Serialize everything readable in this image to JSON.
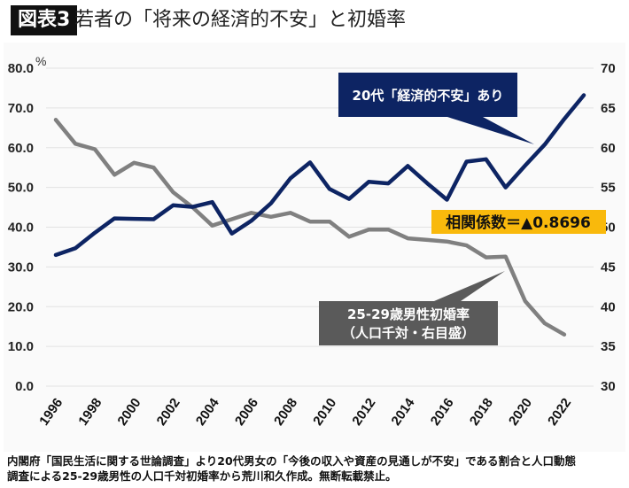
{
  "header": {
    "badge": "図表3",
    "title": "若者の「将来の経済的不安」と初婚率"
  },
  "chart_data": {
    "type": "line",
    "title": "若者の「将来の経済的不安」と初婚率",
    "left_axis": {
      "unit_label": "%",
      "ylim": [
        0,
        80
      ],
      "ticks": [
        "0.0",
        "10.0",
        "20.0",
        "30.0",
        "40.0",
        "50.0",
        "60.0",
        "70.0",
        "80.0"
      ],
      "tick_values": [
        0,
        10,
        20,
        30,
        40,
        50,
        60,
        70,
        80
      ]
    },
    "right_axis": {
      "ylim": [
        30,
        70
      ],
      "ticks": [
        "30",
        "35",
        "40",
        "45",
        "50",
        "55",
        "60",
        "65",
        "70"
      ],
      "tick_values": [
        30,
        35,
        40,
        45,
        50,
        55,
        60,
        65,
        70
      ]
    },
    "x_ticks": [
      "1996",
      "1998",
      "2000",
      "2002",
      "2004",
      "2006",
      "2008",
      "2010",
      "2012",
      "2014",
      "2016",
      "2018",
      "2020",
      "2022"
    ],
    "x_tick_values": [
      1996,
      1998,
      2000,
      2002,
      2004,
      2006,
      2008,
      2010,
      2012,
      2014,
      2016,
      2018,
      2020,
      2022
    ],
    "xlim": [
      1996,
      2023
    ],
    "grid": true,
    "series": [
      {
        "name": "20代「経済的不安」あり",
        "axis": "left",
        "color": "#0d2463",
        "x": [
          1996,
          1997,
          1998,
          1999,
          2000,
          2001,
          2002,
          2003,
          2004,
          2005,
          2006,
          2007,
          2008,
          2009,
          2010,
          2011,
          2012,
          2013,
          2014,
          2015,
          2016,
          2017,
          2018,
          2019,
          2020,
          2021,
          2022,
          2023
        ],
        "values": [
          33.0,
          34.7,
          38.6,
          42.2,
          42.1,
          42.0,
          45.5,
          45.1,
          46.3,
          38.4,
          41.6,
          46.0,
          52.3,
          56.3,
          49.6,
          47.1,
          51.4,
          51.0,
          55.4,
          51.0,
          46.9,
          56.5,
          57.1,
          50.0,
          55.5,
          60.8,
          67.2,
          73.2
        ]
      },
      {
        "name": "25-29歳男性初婚率（人口千対・右目盛）",
        "axis": "right",
        "color": "#808080",
        "x": [
          1996,
          1997,
          1998,
          1999,
          2000,
          2001,
          2002,
          2003,
          2004,
          2005,
          2006,
          2007,
          2008,
          2009,
          2010,
          2011,
          2012,
          2013,
          2014,
          2015,
          2016,
          2017,
          2018,
          2019,
          2020,
          2021,
          2022
        ],
        "values": [
          63.5,
          60.5,
          59.8,
          56.6,
          58.1,
          57.5,
          54.4,
          52.5,
          50.2,
          51.0,
          51.8,
          51.3,
          51.8,
          50.7,
          50.7,
          48.8,
          49.7,
          49.7,
          48.6,
          48.4,
          48.2,
          47.7,
          46.2,
          46.3,
          40.7,
          37.9,
          36.5
        ]
      }
    ],
    "annotations": {
      "blue_callout": "20代「経済的不安」あり",
      "gray_callout_line1": "25-29歳男性初婚率",
      "gray_callout_line2": "（人口千対・右目盛）",
      "correlation": "相関係数＝▲0.8696"
    },
    "colors": {
      "blue_box": "#0d2463",
      "gray_box": "#5a5a5a",
      "corr_box": "#f9b90c",
      "grid": "#e2e2e2"
    }
  },
  "footer": {
    "source_line1": "内閣府「国民生活に関する世論調査」より20代男女の「今後の収入や資産の見通しが不安」である割合と人口動態",
    "source_line2": "調査による25-29歳男性の人口千対初婚率から荒川和久作成。無断転載禁止。"
  }
}
